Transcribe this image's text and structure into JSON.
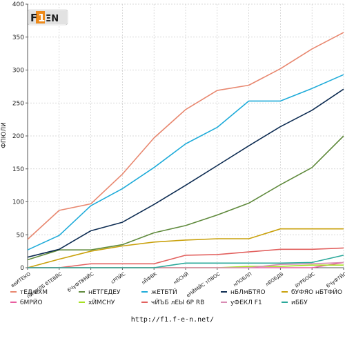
{
  "chart_data": {
    "type": "line",
    "title": "",
    "xlabel": "",
    "ylabel": "ФПЮЛИ",
    "ylim": [
      0,
      400
    ],
    "yticks": [
      0,
      50,
      100,
      150,
      200,
      250,
      300,
      350,
      400
    ],
    "grid": true,
    "legend_position": "bottom",
    "categories": [
      "ввИТЕКО",
      "пЙФУЛБ бТЕВЙС",
      "бЧуФТВМЙС",
      "сРПЙС",
      "лЙФВК",
      "нБСНЙ",
      "еНЙМЙС тПВОС",
      "нПОБЛП",
      "лБОБДБ",
      "йУРБОЙС",
      "бЧуФТЙС"
    ],
    "series": [
      {
        "name": "тЕД вХМ",
        "color": "#e8876f",
        "values": [
          43,
          87,
          97,
          142,
          197,
          240,
          269,
          277,
          302,
          332,
          357
        ]
      },
      {
        "name": "нЕТГЕДЕУ",
        "color": "#5f8a3c",
        "values": [
          12,
          27,
          27,
          35,
          53,
          64,
          80,
          98,
          126,
          152,
          200
        ]
      },
      {
        "name": "жЕТБТЙ",
        "color": "#1eabd9",
        "values": [
          27,
          49,
          94,
          120,
          152,
          188,
          213,
          253,
          253,
          272,
          293
        ]
      },
      {
        "name": "нБЛмБТЯО",
        "color": "#0d2c52",
        "values": [
          16,
          28,
          56,
          69,
          96,
          125,
          155,
          185,
          214,
          239,
          271
        ]
      },
      {
        "name": "бУФЯО нБТФЙО",
        "color": "#c9a10c",
        "values": [
          0,
          13,
          25,
          33,
          39,
          42,
          44,
          44,
          59,
          59,
          59
        ]
      },
      {
        "name": "бМРЙО",
        "color": "#e85fa0",
        "values": [
          0,
          0,
          0,
          0,
          0,
          0,
          0,
          0,
          0,
          0,
          8
        ]
      },
      {
        "name": "хЙМСНУ",
        "color": "#a6e022",
        "values": [
          0,
          0,
          0,
          0,
          0,
          0,
          0,
          2,
          2,
          4,
          4
        ]
      },
      {
        "name": "чЙЪБ лЕЫ 6Р RB",
        "color": "#e2615f",
        "values": [
          0,
          0,
          6,
          6,
          6,
          19,
          20,
          24,
          28,
          28,
          30
        ]
      },
      {
        "name": "уФЕКЛ F1",
        "color": "#d98cb4",
        "values": [
          0,
          0,
          0,
          0,
          0,
          0,
          0,
          0,
          5,
          6,
          8
        ]
      },
      {
        "name": "иББУ",
        "color": "#2aa89a",
        "values": [
          0,
          0,
          0,
          0,
          0,
          7,
          7,
          7,
          7,
          8,
          19
        ]
      }
    ]
  },
  "logo": {
    "text": "F1-EN"
  },
  "footer": {
    "url": "http://f1.f-e-n.net/"
  }
}
